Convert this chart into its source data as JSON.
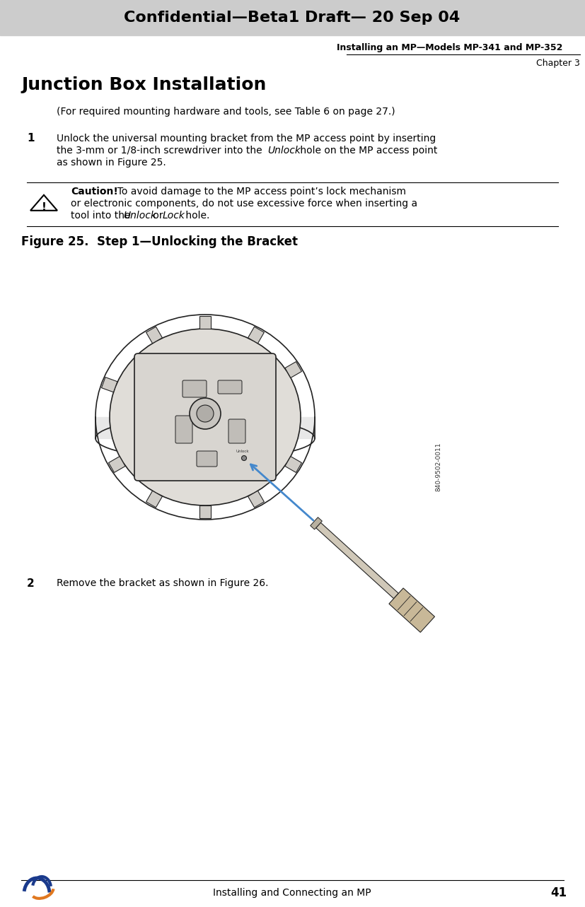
{
  "page_width": 8.27,
  "page_height": 12.83,
  "bg_color": "#ffffff",
  "header_bg": "#cccccc",
  "header_text": "Confidential—Beta1 Draft— 20 Sep 04",
  "subheader_text": "Installing an MP—Models MP-341 and MP-352",
  "chapter_text": "Chapter 3",
  "title": "Junction Box Installation",
  "para_intro": "(For required mounting hardware and tools, see Table 6 on page 27.)",
  "step1_num": "1",
  "step1_line1": "Unlock the universal mounting bracket from the MP access point by inserting",
  "step1_line2a": "the 3-mm or 1/8-inch screwdriver into the ",
  "step1_line2b": "Unlock",
  "step1_line2c": " hole on the MP access point",
  "step1_line3": "as shown in Figure 25.",
  "caution_bold": "Caution!",
  "caution_line1": "  To avoid damage to the MP access point’s lock mechanism",
  "caution_line2": "or electronic components, do not use excessive force when inserting a",
  "caution_line3a": "tool into the ",
  "caution_line3b": "Unlock",
  "caution_line3c": " or ",
  "caution_line3d": "Lock",
  "caution_line3e": " hole.",
  "figure_caption": "Figure 25.  Step 1—Unlocking the Bracket",
  "step2_num": "2",
  "step2_text": "Remove the bracket as shown in Figure 26.",
  "footer_text": "Installing and Connecting an MP",
  "footer_page": "41",
  "arrow_color": "#4488cc",
  "watermark_text": "840-9502-0011"
}
